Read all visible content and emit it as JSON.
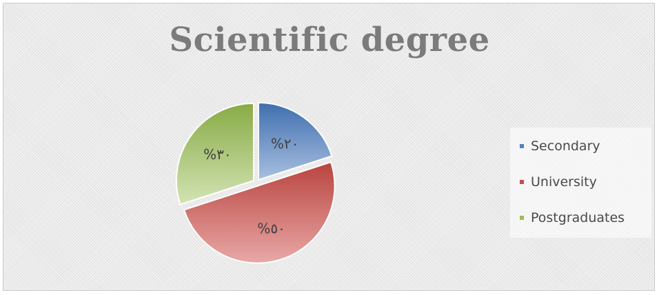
{
  "chart_data": {
    "type": "pie",
    "title": "Scientific degree",
    "categories": [
      "Secondary",
      "University",
      "Postgraduates"
    ],
    "values": [
      20,
      50,
      30
    ],
    "data_labels": [
      "%٢٠",
      "%٥٠",
      "%٣٠"
    ],
    "colors": [
      "#4F81BD",
      "#C0504D",
      "#9BBB59"
    ],
    "legend_position": "right"
  },
  "legend": {
    "items": [
      {
        "label": "Secondary",
        "color": "#4F81BD"
      },
      {
        "label": "University",
        "color": "#C0504D"
      },
      {
        "label": "Postgraduates",
        "color": "#9BBB59"
      }
    ]
  }
}
